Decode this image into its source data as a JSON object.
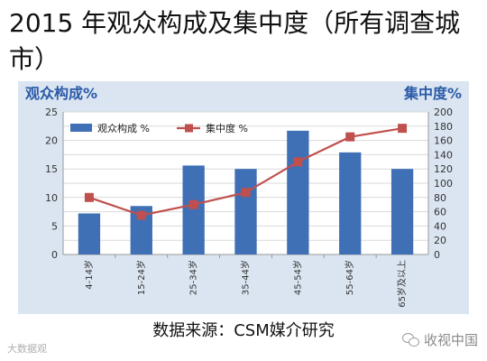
{
  "slide": {
    "title": "2015 年观众构成及集中度（所有调查城市）",
    "source": "数据来源：CSM媒介研究",
    "watermark_left": "大数据观",
    "watermark_right": "收视中国"
  },
  "chart_data": {
    "type": "bar+line",
    "categories": [
      "4-14岁",
      "15-24岁",
      "25-34岁",
      "35-44岁",
      "45-54岁",
      "55-64岁",
      "65岁及以上"
    ],
    "left_axis_title": "观众构成%",
    "right_axis_title": "集中度%",
    "series": [
      {
        "name": "观众构成 %",
        "type": "bar",
        "axis": "left",
        "color": "#3f6fb5",
        "values": [
          7.2,
          8.5,
          15.6,
          15.0,
          21.7,
          17.9,
          15.0
        ]
      },
      {
        "name": "集中度 %",
        "type": "line",
        "axis": "right",
        "color": "#c0504d",
        "values": [
          80,
          55,
          70,
          87,
          130,
          165,
          177
        ]
      }
    ],
    "ylim_left": [
      0,
      25
    ],
    "yticks_left": [
      "0",
      "5",
      "10",
      "15",
      "20",
      "25"
    ],
    "ylim_right": [
      0,
      200
    ],
    "yticks_right": [
      "0",
      "20",
      "40",
      "60",
      "80",
      "100",
      "120",
      "140",
      "160",
      "180",
      "200"
    ],
    "grid": true,
    "legend_position": "top-left"
  }
}
